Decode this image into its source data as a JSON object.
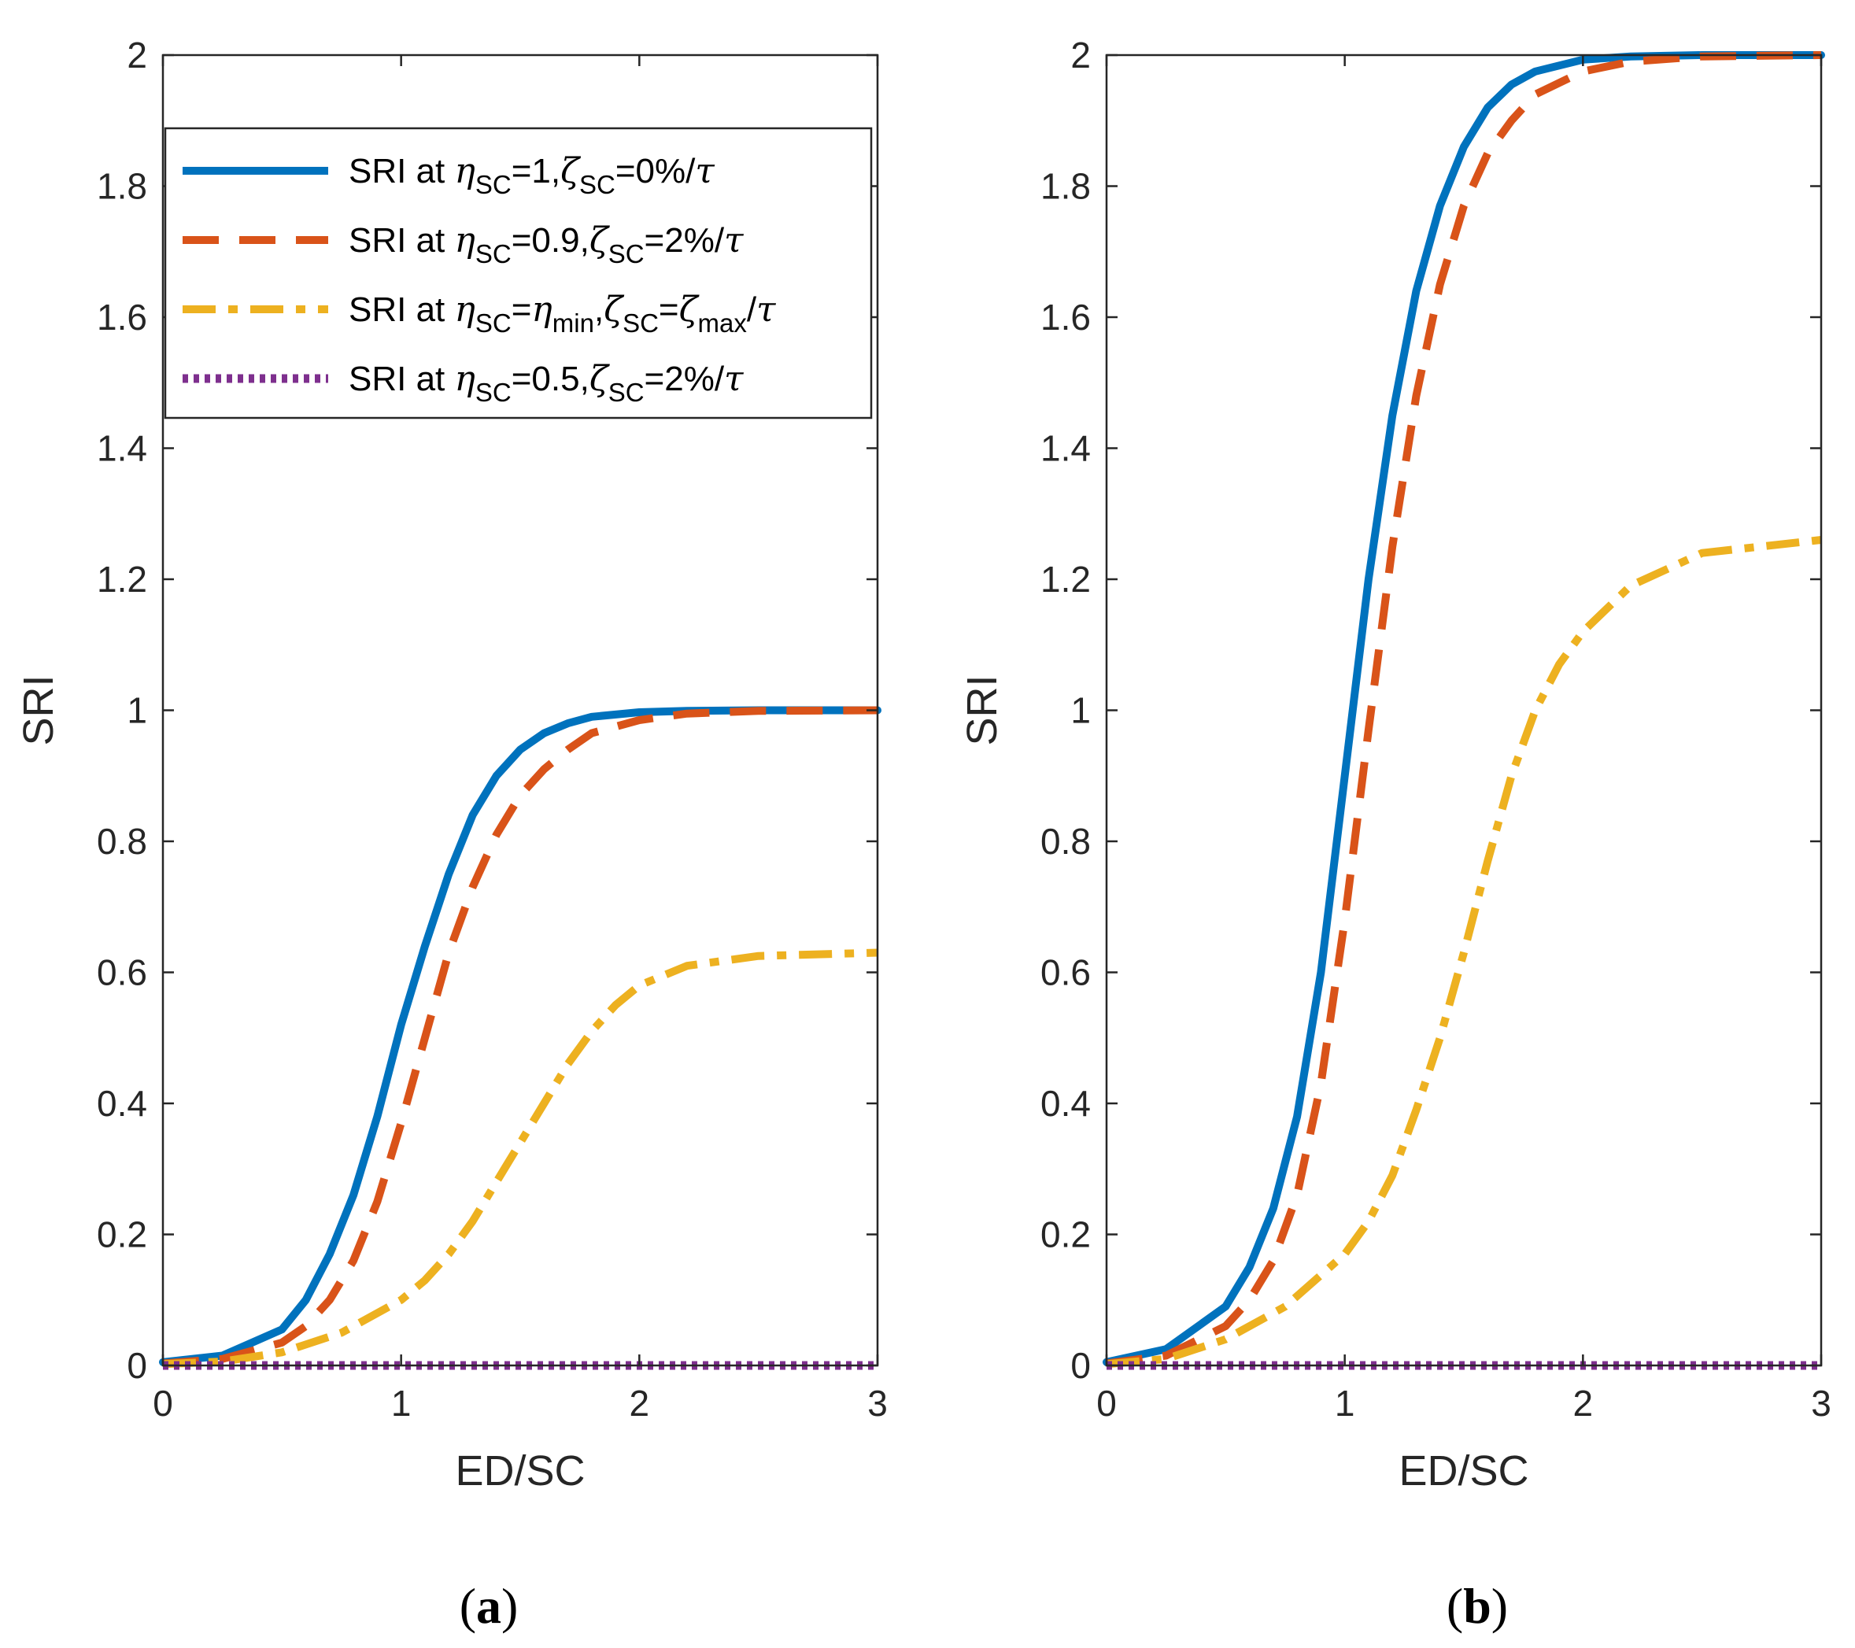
{
  "chart_data": [
    {
      "panel": "a",
      "caption": "(a)",
      "caption_parts": {
        "open": "(",
        "letter": "a",
        "close": ")"
      },
      "type": "line",
      "xlabel": "ED/SC",
      "ylabel": "SRI",
      "xlim": [
        0,
        3
      ],
      "ylim": [
        0,
        2
      ],
      "xticks": [
        0,
        1,
        2,
        3
      ],
      "yticks": [
        0,
        0.2,
        0.4,
        0.6,
        0.8,
        1,
        1.2,
        1.4,
        1.6,
        1.8,
        2
      ],
      "grid": false,
      "legend_position": "upper-left",
      "series": [
        {
          "name": "SRI at ηSC=1,ζSC=0%/τ",
          "style": "solid",
          "color": "#0072BD",
          "x": [
            0,
            0.25,
            0.5,
            0.6,
            0.7,
            0.8,
            0.9,
            1.0,
            1.1,
            1.2,
            1.3,
            1.4,
            1.5,
            1.6,
            1.7,
            1.8,
            2.0,
            2.2,
            2.5,
            3.0
          ],
          "values": [
            0.005,
            0.015,
            0.055,
            0.1,
            0.17,
            0.26,
            0.38,
            0.52,
            0.64,
            0.75,
            0.84,
            0.9,
            0.94,
            0.965,
            0.98,
            0.99,
            0.997,
            0.999,
            1.0,
            1.0
          ]
        },
        {
          "name": "SRI at ηSC=0.9,ζSC=2%/τ",
          "style": "dashed",
          "color": "#D95319",
          "x": [
            0,
            0.25,
            0.5,
            0.6,
            0.7,
            0.8,
            0.9,
            1.0,
            1.1,
            1.2,
            1.3,
            1.4,
            1.5,
            1.6,
            1.7,
            1.8,
            2.0,
            2.2,
            2.5,
            3.0
          ],
          "values": [
            0.003,
            0.01,
            0.035,
            0.06,
            0.1,
            0.16,
            0.25,
            0.37,
            0.5,
            0.63,
            0.73,
            0.81,
            0.87,
            0.91,
            0.94,
            0.965,
            0.985,
            0.995,
            0.999,
            1.0
          ]
        },
        {
          "name": "SRI at ηSC=ηmin,ζSC=ζmax/τ",
          "style": "dashdot",
          "color": "#EDB120",
          "x": [
            0,
            0.25,
            0.5,
            0.75,
            1.0,
            1.1,
            1.2,
            1.3,
            1.4,
            1.5,
            1.6,
            1.7,
            1.8,
            1.9,
            2.0,
            2.2,
            2.5,
            3.0
          ],
          "values": [
            0.002,
            0.006,
            0.02,
            0.05,
            0.1,
            0.13,
            0.17,
            0.22,
            0.28,
            0.34,
            0.4,
            0.46,
            0.51,
            0.55,
            0.58,
            0.61,
            0.625,
            0.63
          ]
        },
        {
          "name": "SRI at ηSC=0.5,ζSC=2%/τ",
          "style": "dotted",
          "color": "#7E2F8E",
          "x": [
            0,
            3
          ],
          "values": [
            0,
            0
          ]
        }
      ]
    },
    {
      "panel": "b",
      "caption": "(b)",
      "caption_parts": {
        "open": "(",
        "letter": "b",
        "close": ")"
      },
      "type": "line",
      "xlabel": "ED/SC",
      "ylabel": "SRI",
      "xlim": [
        0,
        3
      ],
      "ylim": [
        0,
        2
      ],
      "xticks": [
        0,
        1,
        2,
        3
      ],
      "yticks": [
        0,
        0.2,
        0.4,
        0.6,
        0.8,
        1,
        1.2,
        1.4,
        1.6,
        1.8,
        2
      ],
      "grid": false,
      "series": [
        {
          "name": "SRI at ηSC=1,ζSC=0%/τ",
          "style": "solid",
          "color": "#0072BD",
          "x": [
            0,
            0.25,
            0.5,
            0.6,
            0.7,
            0.8,
            0.9,
            1.0,
            1.1,
            1.2,
            1.3,
            1.4,
            1.5,
            1.6,
            1.7,
            1.8,
            2.0,
            2.2,
            2.5,
            3.0
          ],
          "values": [
            0.005,
            0.025,
            0.09,
            0.15,
            0.24,
            0.38,
            0.6,
            0.9,
            1.2,
            1.45,
            1.64,
            1.77,
            1.86,
            1.92,
            1.955,
            1.975,
            1.993,
            1.998,
            2.0,
            2.0
          ]
        },
        {
          "name": "SRI at ηSC=0.9,ζSC=2%/τ",
          "style": "dashed",
          "color": "#D95319",
          "x": [
            0,
            0.25,
            0.5,
            0.6,
            0.7,
            0.8,
            0.9,
            1.0,
            1.1,
            1.2,
            1.3,
            1.4,
            1.5,
            1.6,
            1.7,
            1.8,
            2.0,
            2.2,
            2.5,
            3.0
          ],
          "values": [
            0.003,
            0.015,
            0.06,
            0.1,
            0.16,
            0.26,
            0.43,
            0.68,
            0.97,
            1.25,
            1.48,
            1.65,
            1.77,
            1.85,
            1.9,
            1.94,
            1.975,
            1.99,
            1.998,
            2.0
          ]
        },
        {
          "name": "SRI at ηSC=ηmin,ζSC=ζmax/τ",
          "style": "dashdot",
          "color": "#EDB120",
          "x": [
            0,
            0.25,
            0.5,
            0.75,
            1.0,
            1.1,
            1.2,
            1.3,
            1.4,
            1.5,
            1.6,
            1.7,
            1.8,
            1.9,
            2.0,
            2.2,
            2.5,
            3.0
          ],
          "values": [
            0.002,
            0.01,
            0.04,
            0.09,
            0.17,
            0.22,
            0.29,
            0.39,
            0.5,
            0.63,
            0.77,
            0.9,
            1.0,
            1.07,
            1.12,
            1.19,
            1.24,
            1.26
          ]
        },
        {
          "name": "SRI at ηSC=0.5,ζSC=2%/τ",
          "style": "dotted",
          "color": "#7E2F8E",
          "x": [
            0,
            3
          ],
          "values": [
            0,
            0
          ]
        }
      ]
    }
  ],
  "legend": {
    "entries": [
      {
        "prefix": "SRI at ",
        "eta": "η",
        "eta_sub": "SC",
        "eq1": "=",
        "eta_val": "1",
        "eta_val_sub": "",
        "comma": ",",
        "zeta": "ζ",
        "zeta_sub": "SC",
        "eq2": "=",
        "zeta_val": "0%",
        "zeta_val_sub": "",
        "slash": "/",
        "tau": "τ"
      },
      {
        "prefix": "SRI at ",
        "eta": "η",
        "eta_sub": "SC",
        "eq1": "=",
        "eta_val": "0.9",
        "eta_val_sub": "",
        "comma": ",",
        "zeta": "ζ",
        "zeta_sub": "SC",
        "eq2": "=",
        "zeta_val": "2%",
        "zeta_val_sub": "",
        "slash": "/",
        "tau": "τ"
      },
      {
        "prefix": "SRI at ",
        "eta": "η",
        "eta_sub": "SC",
        "eq1": "=",
        "eta_val": "η",
        "eta_val_sub": "min",
        "comma": ",",
        "zeta": "ζ",
        "zeta_sub": "SC",
        "eq2": "=",
        "zeta_val": "ζ",
        "zeta_val_sub": "max",
        "slash": "/",
        "tau": "τ"
      },
      {
        "prefix": "SRI at ",
        "eta": "η",
        "eta_sub": "SC",
        "eq1": "=",
        "eta_val": "0.5",
        "eta_val_sub": "",
        "comma": ",",
        "zeta": "ζ",
        "zeta_sub": "SC",
        "eq2": "=",
        "zeta_val": "2%",
        "zeta_val_sub": "",
        "slash": "/",
        "tau": "τ"
      }
    ]
  }
}
